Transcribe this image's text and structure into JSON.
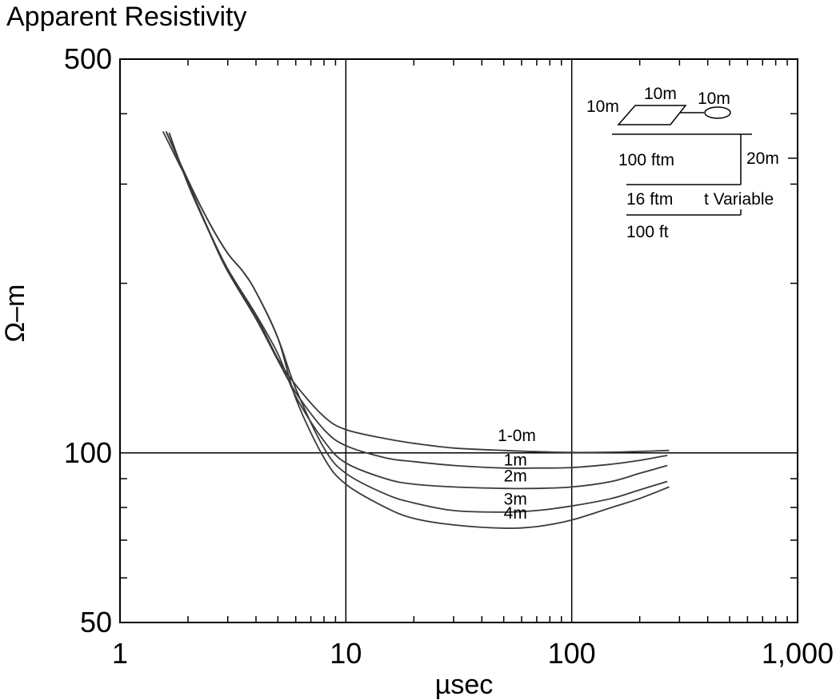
{
  "chart_data": {
    "type": "line",
    "title": "Apparent Resistivity",
    "xlabel": "µsec",
    "ylabel": "Ω–m",
    "x_scale": "log",
    "y_scale": "log",
    "xlim": [
      1,
      1000
    ],
    "ylim": [
      50,
      500
    ],
    "x_tick_labels": [
      {
        "value": 1,
        "label": "1"
      },
      {
        "value": 10,
        "label": "10"
      },
      {
        "value": 100,
        "label": "100"
      },
      {
        "value": 1000,
        "label": "1,000"
      }
    ],
    "y_tick_labels": [
      {
        "value": 50,
        "label": "50"
      },
      {
        "value": 100,
        "label": "100"
      },
      {
        "value": 500,
        "label": "500"
      }
    ],
    "grid": "major gridlines at x=10, x=100 and y=100",
    "series": [
      {
        "name": "1-0m",
        "x": [
          1.65,
          2.0,
          2.5,
          3.0,
          4.0,
          5.0,
          6.0,
          8.0,
          10,
          15,
          20,
          30,
          50,
          70,
          100,
          150,
          200,
          270
        ],
        "y": [
          370,
          300,
          245,
          210,
          175,
          147,
          132,
          116,
          110,
          106,
          104,
          102,
          101,
          100.5,
          100.2,
          100.3,
          100.6,
          101
        ]
      },
      {
        "name": "1m",
        "x": [
          1.65,
          2.0,
          2.5,
          3.0,
          4.0,
          5.0,
          6.0,
          8.0,
          10,
          15,
          20,
          30,
          50,
          70,
          100,
          150,
          200,
          265
        ],
        "y": [
          370,
          300,
          245,
          210,
          173,
          146,
          128,
          110,
          103,
          98,
          96.5,
          95,
          94,
          94,
          94.2,
          95.5,
          97,
          99
        ]
      },
      {
        "name": "2m",
        "x": [
          1.6,
          2.0,
          2.5,
          3.0,
          4.0,
          5.0,
          6.0,
          8.0,
          10,
          15,
          20,
          30,
          50,
          70,
          100,
          150,
          200,
          265
        ],
        "y": [
          372,
          302,
          246,
          212,
          176,
          150,
          126,
          105,
          96,
          90,
          88,
          87,
          86.5,
          86.5,
          87,
          89,
          92,
          95
        ]
      },
      {
        "name": "3m",
        "x": [
          1.6,
          2.0,
          2.5,
          3.0,
          3.5,
          4.0,
          5.0,
          6.0,
          8.0,
          10,
          15,
          20,
          30,
          50,
          70,
          100,
          150,
          200,
          265
        ],
        "y": [
          372,
          305,
          255,
          226,
          210,
          193,
          160,
          130,
          102,
          92,
          84.5,
          81.5,
          79,
          78.5,
          79,
          80.5,
          83,
          86,
          89
        ]
      },
      {
        "name": "4m",
        "x": [
          1.55,
          2.0,
          2.5,
          3.0,
          3.5,
          4.0,
          5.0,
          6.0,
          8.0,
          10,
          15,
          20,
          30,
          50,
          70,
          100,
          150,
          200,
          270
        ],
        "y": [
          372,
          303,
          255,
          226,
          210,
          193,
          160,
          125,
          98,
          88,
          80,
          76.5,
          74.5,
          73.5,
          74,
          76,
          80,
          83,
          87
        ]
      }
    ],
    "curve_labels": [
      {
        "text": "1-0m",
        "x": 47,
        "y": 105
      },
      {
        "text": "1m",
        "x": 50,
        "y": 95
      },
      {
        "text": "2m",
        "x": 50,
        "y": 89
      },
      {
        "text": "3m",
        "x": 50,
        "y": 81
      },
      {
        "text": "4m",
        "x": 50,
        "y": 76.5
      }
    ]
  },
  "inset": {
    "labels": {
      "loop_left": "10m",
      "loop_top": "10m",
      "receiver": "10m",
      "layer_1": "100 ftm",
      "depth": "20m",
      "layer_2": "16 ftm",
      "thickness": "t Variable",
      "layer_3": "100 ft"
    }
  }
}
